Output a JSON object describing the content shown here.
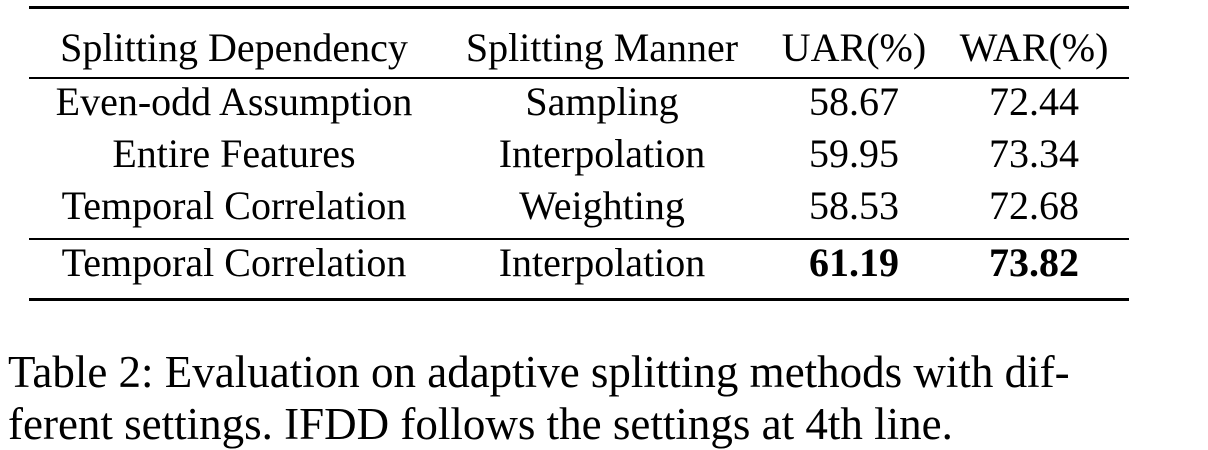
{
  "table": {
    "headers": [
      "Splitting Dependency",
      "Splitting Manner",
      "UAR(%)",
      "WAR(%)"
    ],
    "rows": [
      [
        "Even-odd Assumption",
        "Sampling",
        "58.67",
        "72.44"
      ],
      [
        "Entire Features",
        "Interpolation",
        "59.95",
        "73.34"
      ],
      [
        "Temporal Correlation",
        "Weighting",
        "58.53",
        "72.68"
      ],
      [
        "Temporal Correlation",
        "Interpolation",
        "61.19",
        "73.82"
      ]
    ],
    "bold_cells": [
      [
        3,
        2
      ],
      [
        3,
        3
      ]
    ]
  },
  "caption": {
    "line1": "Table 2: Evaluation on adaptive splitting methods with dif-",
    "line2": "ferent settings. IFDD follows the settings at 4th line."
  }
}
